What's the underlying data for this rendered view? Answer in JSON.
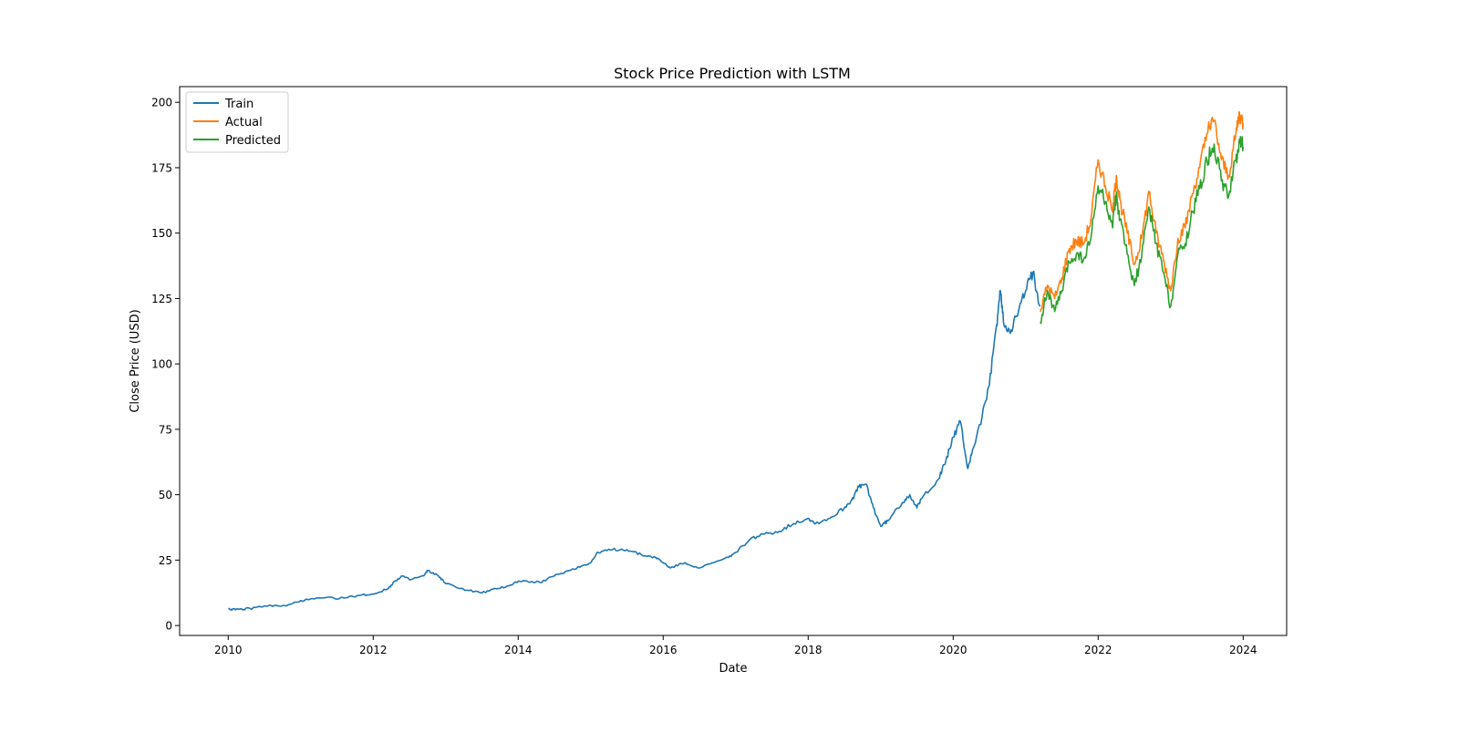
{
  "chart_data": {
    "type": "line",
    "title": "Stock Price Prediction with LSTM",
    "xlabel": "Date",
    "ylabel": "Close Price (USD)",
    "xlim": [
      2009.33,
      2024.6
    ],
    "ylim": [
      -3.8,
      206
    ],
    "xticks": [
      2010,
      2012,
      2014,
      2016,
      2018,
      2020,
      2022,
      2024
    ],
    "xtick_labels": [
      "2010",
      "2012",
      "2014",
      "2016",
      "2018",
      "2020",
      "2022",
      "2024"
    ],
    "yticks": [
      0,
      25,
      50,
      75,
      100,
      125,
      150,
      175,
      200
    ],
    "ytick_labels": [
      "0",
      "25",
      "50",
      "75",
      "100",
      "125",
      "150",
      "175",
      "200"
    ],
    "grid": false,
    "legend_position": "top-left",
    "series": [
      {
        "name": "Train",
        "color": "#1f77b4",
        "x": [
          2010.0,
          2010.1,
          2010.3,
          2010.5,
          2010.8,
          2011.0,
          2011.3,
          2011.6,
          2011.8,
          2012.0,
          2012.2,
          2012.3,
          2012.4,
          2012.5,
          2012.7,
          2012.75,
          2012.9,
          2013.0,
          2013.3,
          2013.5,
          2013.7,
          2013.9,
          2014.0,
          2014.3,
          2014.5,
          2014.7,
          2014.9,
          2015.0,
          2015.1,
          2015.3,
          2015.5,
          2015.7,
          2015.9,
          2016.0,
          2016.1,
          2016.3,
          2016.5,
          2016.7,
          2016.9,
          2017.0,
          2017.2,
          2017.4,
          2017.6,
          2017.8,
          2018.0,
          2018.1,
          2018.3,
          2018.5,
          2018.6,
          2018.7,
          2018.8,
          2018.9,
          2019.0,
          2019.1,
          2019.3,
          2019.4,
          2019.5,
          2019.6,
          2019.8,
          2019.9,
          2020.0,
          2020.1,
          2020.2,
          2020.25,
          2020.4,
          2020.5,
          2020.6,
          2020.65,
          2020.7,
          2020.8,
          2020.9,
          2021.0,
          2021.1,
          2021.2
        ],
        "y": [
          6.5,
          6,
          6.5,
          7.5,
          7.5,
          9.5,
          10.5,
          10.5,
          11.5,
          12,
          14,
          17,
          19,
          17.5,
          19,
          21,
          19,
          16,
          13.5,
          12.5,
          14,
          15.5,
          17,
          16.5,
          19,
          21,
          23,
          24,
          28,
          29,
          29,
          27,
          26,
          24,
          22,
          24,
          22,
          24,
          26,
          28,
          33,
          35,
          36,
          39,
          41,
          39,
          41,
          45,
          48,
          53,
          54,
          45,
          38,
          40,
          47,
          50,
          45,
          50,
          56,
          63,
          72,
          78,
          60,
          65,
          80,
          92,
          115,
          128,
          115,
          113,
          120,
          128,
          135,
          122
        ]
      },
      {
        "name": "Actual",
        "color": "#ff7f0e",
        "x": [
          2021.2,
          2021.3,
          2021.4,
          2021.5,
          2021.6,
          2021.7,
          2021.8,
          2021.9,
          2022.0,
          2022.1,
          2022.2,
          2022.25,
          2022.3,
          2022.4,
          2022.5,
          2022.6,
          2022.7,
          2022.8,
          2022.9,
          2023.0,
          2023.1,
          2023.2,
          2023.3,
          2023.4,
          2023.5,
          2023.6,
          2023.7,
          2023.8,
          2023.9,
          2023.95,
          2024.0
        ],
        "y": [
          120,
          130,
          125,
          133,
          144,
          147,
          146,
          155,
          178,
          168,
          158,
          172,
          163,
          150,
          138,
          148,
          166,
          150,
          140,
          128,
          148,
          152,
          165,
          175,
          188,
          193,
          178,
          172,
          188,
          196,
          192
        ]
      },
      {
        "name": "Predicted",
        "color": "#2ca02c",
        "x": [
          2021.2,
          2021.3,
          2021.4,
          2021.5,
          2021.6,
          2021.7,
          2021.8,
          2021.9,
          2022.0,
          2022.1,
          2022.2,
          2022.25,
          2022.3,
          2022.4,
          2022.5,
          2022.6,
          2022.7,
          2022.8,
          2022.9,
          2023.0,
          2023.1,
          2023.2,
          2023.3,
          2023.4,
          2023.5,
          2023.6,
          2023.7,
          2023.8,
          2023.9,
          2023.95,
          2024.0
        ],
        "y": [
          116,
          128,
          120,
          128,
          139,
          142,
          140,
          148,
          168,
          162,
          152,
          165,
          155,
          142,
          130,
          141,
          160,
          146,
          135,
          122,
          142,
          146,
          158,
          167,
          178,
          184,
          170,
          164,
          178,
          186,
          183
        ]
      }
    ]
  }
}
